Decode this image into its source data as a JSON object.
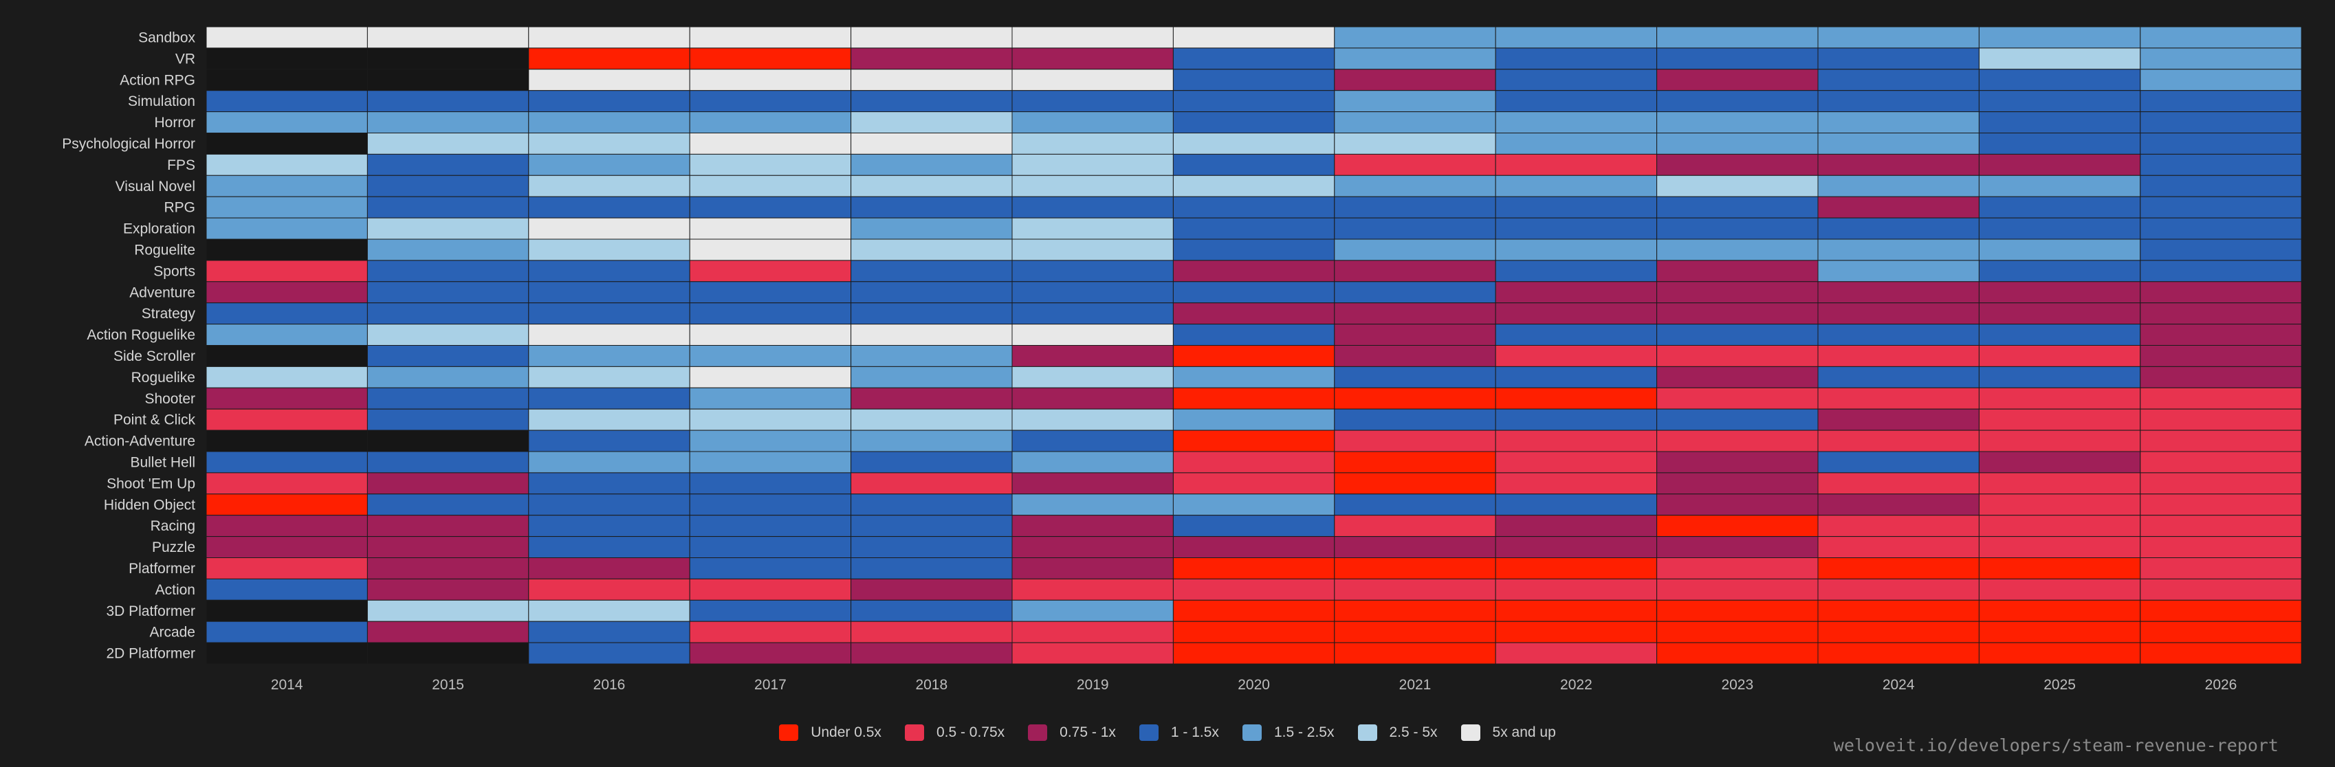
{
  "chart_data": {
    "type": "heatmap",
    "title": "",
    "xlabel": "",
    "ylabel": "",
    "x": [
      "2014",
      "2015",
      "2016",
      "2017",
      "2018",
      "2019",
      "2020",
      "2021",
      "2022",
      "2023",
      "2024",
      "2025",
      "2026"
    ],
    "y": [
      "Sandbox",
      "VR",
      "Action RPG",
      "Simulation",
      "Horror",
      "Psychological Horror",
      "FPS",
      "Visual Novel",
      "RPG",
      "Exploration",
      "Roguelite",
      "Sports",
      "Adventure",
      "Strategy",
      "Action Roguelike",
      "Side Scroller",
      "Roguelike",
      "Shooter",
      "Point & Click",
      "Action-Adventure",
      "Bullet Hell",
      "Shoot 'Em Up",
      "Hidden Object",
      "Racing",
      "Puzzle",
      "Platformer",
      "Action",
      "3D Platformer",
      "Arcade",
      "2D Platformer"
    ],
    "categories": [
      "Under 0.5x",
      "0.5 - 0.75x",
      "0.75 - 1x",
      "1 - 1.5x",
      "1.5 - 2.5x",
      "2.5 - 5x",
      "5x and up"
    ],
    "colors": [
      "#ff1f00",
      "#e8334f",
      "#a01f58",
      "#2a62b5",
      "#62a0d2",
      "#a9d0e6",
      "#e8e8e8"
    ],
    "empty_color": "#161616",
    "values": [
      [
        6,
        6,
        6,
        6,
        6,
        6,
        6,
        4,
        4,
        4,
        4,
        4,
        4
      ],
      [
        null,
        null,
        0,
        0,
        2,
        2,
        3,
        4,
        3,
        3,
        3,
        5,
        4
      ],
      [
        null,
        null,
        6,
        6,
        6,
        6,
        3,
        2,
        3,
        2,
        3,
        3,
        4
      ],
      [
        3,
        3,
        3,
        3,
        3,
        3,
        3,
        4,
        3,
        3,
        3,
        3,
        3
      ],
      [
        4,
        4,
        4,
        4,
        5,
        4,
        3,
        4,
        4,
        4,
        4,
        3,
        3
      ],
      [
        null,
        5,
        5,
        6,
        6,
        5,
        5,
        5,
        4,
        4,
        4,
        3,
        3
      ],
      [
        5,
        3,
        4,
        5,
        4,
        5,
        3,
        1,
        1,
        2,
        2,
        2,
        3
      ],
      [
        4,
        3,
        5,
        5,
        5,
        5,
        5,
        4,
        4,
        5,
        4,
        4,
        3
      ],
      [
        4,
        3,
        3,
        3,
        3,
        3,
        3,
        3,
        3,
        3,
        2,
        3,
        3
      ],
      [
        4,
        5,
        6,
        6,
        4,
        5,
        3,
        3,
        3,
        3,
        3,
        3,
        3
      ],
      [
        null,
        4,
        5,
        6,
        5,
        5,
        3,
        4,
        4,
        4,
        4,
        4,
        3
      ],
      [
        1,
        3,
        3,
        1,
        3,
        3,
        2,
        2,
        3,
        2,
        4,
        3,
        3
      ],
      [
        2,
        3,
        3,
        3,
        3,
        3,
        3,
        3,
        2,
        2,
        2,
        2,
        2
      ],
      [
        3,
        3,
        3,
        3,
        3,
        3,
        2,
        2,
        2,
        2,
        2,
        2,
        2
      ],
      [
        4,
        5,
        6,
        6,
        6,
        6,
        3,
        2,
        3,
        3,
        3,
        3,
        2
      ],
      [
        null,
        3,
        4,
        4,
        4,
        2,
        0,
        2,
        1,
        1,
        1,
        1,
        2
      ],
      [
        5,
        4,
        5,
        6,
        4,
        5,
        4,
        3,
        3,
        2,
        3,
        3,
        2
      ],
      [
        2,
        3,
        3,
        4,
        2,
        2,
        0,
        0,
        0,
        1,
        1,
        1,
        1
      ],
      [
        1,
        3,
        5,
        5,
        5,
        5,
        4,
        3,
        3,
        3,
        2,
        1,
        1
      ],
      [
        null,
        null,
        3,
        4,
        4,
        3,
        0,
        1,
        1,
        1,
        1,
        1,
        1
      ],
      [
        3,
        3,
        4,
        4,
        3,
        4,
        1,
        0,
        1,
        2,
        3,
        2,
        1
      ],
      [
        1,
        2,
        3,
        3,
        1,
        2,
        1,
        0,
        1,
        2,
        1,
        1,
        1
      ],
      [
        0,
        3,
        3,
        3,
        3,
        4,
        4,
        3,
        3,
        2,
        2,
        1,
        1
      ],
      [
        2,
        2,
        3,
        3,
        3,
        2,
        3,
        1,
        2,
        0,
        1,
        1,
        1
      ],
      [
        2,
        2,
        3,
        3,
        3,
        2,
        2,
        2,
        2,
        2,
        1,
        1,
        1
      ],
      [
        1,
        2,
        2,
        3,
        3,
        2,
        0,
        0,
        0,
        1,
        0,
        0,
        1
      ],
      [
        3,
        2,
        1,
        1,
        2,
        1,
        1,
        1,
        1,
        1,
        1,
        1,
        1
      ],
      [
        null,
        5,
        5,
        3,
        3,
        4,
        0,
        0,
        0,
        0,
        0,
        0,
        0
      ],
      [
        3,
        2,
        3,
        1,
        1,
        1,
        0,
        0,
        0,
        0,
        0,
        0,
        0
      ],
      [
        null,
        null,
        3,
        2,
        2,
        1,
        0,
        0,
        1,
        0,
        0,
        0,
        0
      ]
    ],
    "legend_position": "bottom-center",
    "grid": true
  },
  "source_label": "weloveit.io/developers/steam-revenue-report"
}
